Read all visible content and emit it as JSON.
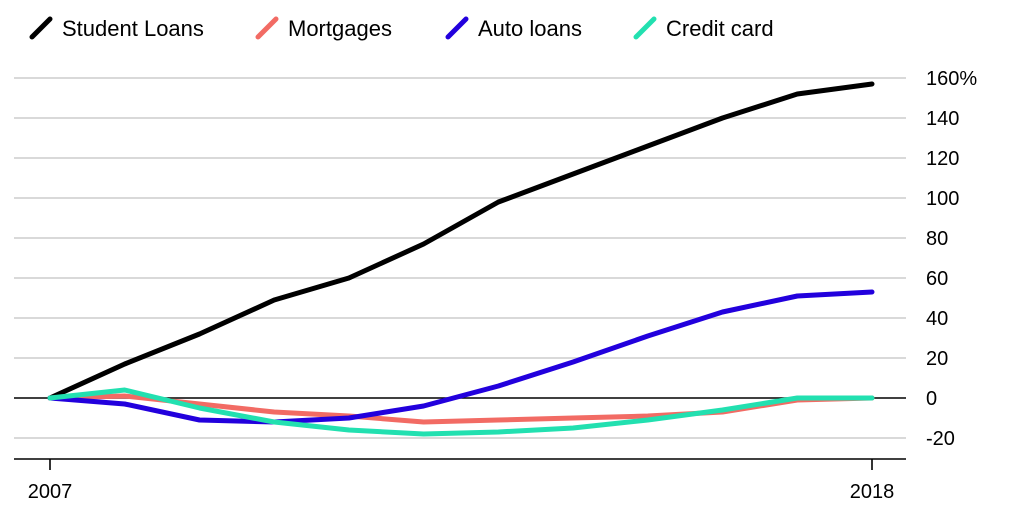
{
  "chart_data": {
    "type": "line",
    "title": "",
    "xlabel": "",
    "ylabel": "",
    "x": [
      2007,
      2008,
      2009,
      2010,
      2011,
      2012,
      2013,
      2014,
      2015,
      2016,
      2017,
      2018
    ],
    "xlim": [
      2007,
      2018
    ],
    "ylim": [
      -20,
      160
    ],
    "x_ticks": [
      2007,
      2018
    ],
    "x_tick_labels": [
      "2007",
      "2018"
    ],
    "y_ticks": [
      -20,
      0,
      20,
      40,
      60,
      80,
      100,
      120,
      140,
      160
    ],
    "y_tick_labels": [
      "-20",
      "0",
      "20",
      "40",
      "60",
      "80",
      "100",
      "120",
      "140",
      "160%"
    ],
    "grid": true,
    "legend_position": "top-left",
    "series": [
      {
        "name": "Student Loans",
        "color": "#000000",
        "values": [
          0,
          17,
          32,
          49,
          60,
          77,
          98,
          112,
          126,
          140,
          152,
          157
        ]
      },
      {
        "name": "Mortgages",
        "color": "#f26b64",
        "values": [
          0,
          1,
          -3,
          -7,
          -9,
          -12,
          -11,
          -10,
          -9,
          -7,
          -1,
          0
        ]
      },
      {
        "name": "Auto loans",
        "color": "#2200dd",
        "values": [
          0,
          -3,
          -11,
          -12,
          -10,
          -4,
          6,
          18,
          31,
          43,
          51,
          53
        ]
      },
      {
        "name": "Credit card",
        "color": "#22e0b0",
        "values": [
          0,
          4,
          -5,
          -12,
          -16,
          -18,
          -17,
          -15,
          -11,
          -6,
          0,
          0
        ]
      }
    ]
  }
}
